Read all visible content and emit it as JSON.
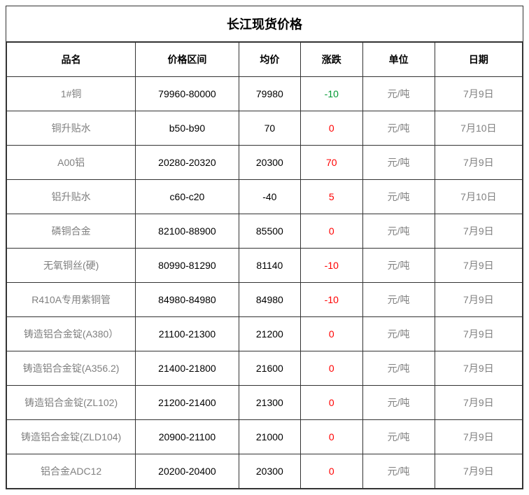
{
  "title": "长江现货价格",
  "columns": [
    "品名",
    "价格区间",
    "均价",
    "涨跌",
    "单位",
    "日期"
  ],
  "colors": {
    "border": "#333333",
    "header_text": "#000000",
    "body_text": "#000000",
    "muted_text": "#808080",
    "positive": "#ff0000",
    "zero": "#ff0000",
    "negative_green": "#009933",
    "negative_red": "#ff0000",
    "background": "#ffffff"
  },
  "col_widths_pct": [
    25,
    20,
    12,
    12,
    14,
    17
  ],
  "font": {
    "title_size_pt": 18,
    "cell_size_pt": 14,
    "title_weight": "bold",
    "header_weight": "bold"
  },
  "rows": [
    {
      "name": "1#铜",
      "range": "79960-80000",
      "avg": "79980",
      "change": "-10",
      "change_style": "neg-green",
      "unit": "元/吨",
      "date": "7月9日"
    },
    {
      "name": "铜升贴水",
      "range": "b50-b90",
      "avg": "70",
      "change": "0",
      "change_style": "zero",
      "unit": "元/吨",
      "date": "7月10日"
    },
    {
      "name": "A00铝",
      "range": "20280-20320",
      "avg": "20300",
      "change": "70",
      "change_style": "pos",
      "unit": "元/吨",
      "date": "7月9日"
    },
    {
      "name": "铝升贴水",
      "range": "c60-c20",
      "avg": "-40",
      "change": "5",
      "change_style": "pos",
      "unit": "元/吨",
      "date": "7月10日"
    },
    {
      "name": "磷铜合金",
      "range": "82100-88900",
      "avg": "85500",
      "change": "0",
      "change_style": "zero",
      "unit": "元/吨",
      "date": "7月9日"
    },
    {
      "name": "无氧铜丝(硬)",
      "range": "80990-81290",
      "avg": "81140",
      "change": "-10",
      "change_style": "neg-red",
      "unit": "元/吨",
      "date": "7月9日"
    },
    {
      "name": "R410A专用紫铜管",
      "range": "84980-84980",
      "avg": "84980",
      "change": "-10",
      "change_style": "neg-red",
      "unit": "元/吨",
      "date": "7月9日"
    },
    {
      "name": "铸造铝合金锭(A380）",
      "range": "21100-21300",
      "avg": "21200",
      "change": "0",
      "change_style": "zero",
      "unit": "元/吨",
      "date": "7月9日"
    },
    {
      "name": "铸造铝合金锭(A356.2)",
      "range": "21400-21800",
      "avg": "21600",
      "change": "0",
      "change_style": "zero",
      "unit": "元/吨",
      "date": "7月9日"
    },
    {
      "name": "铸造铝合金锭(ZL102)",
      "range": "21200-21400",
      "avg": "21300",
      "change": "0",
      "change_style": "zero",
      "unit": "元/吨",
      "date": "7月9日"
    },
    {
      "name": "铸造铝合金锭(ZLD104)",
      "range": "20900-21100",
      "avg": "21000",
      "change": "0",
      "change_style": "zero",
      "unit": "元/吨",
      "date": "7月9日"
    },
    {
      "name": "铝合金ADC12",
      "range": "20200-20400",
      "avg": "20300",
      "change": "0",
      "change_style": "zero",
      "unit": "元/吨",
      "date": "7月9日"
    }
  ]
}
